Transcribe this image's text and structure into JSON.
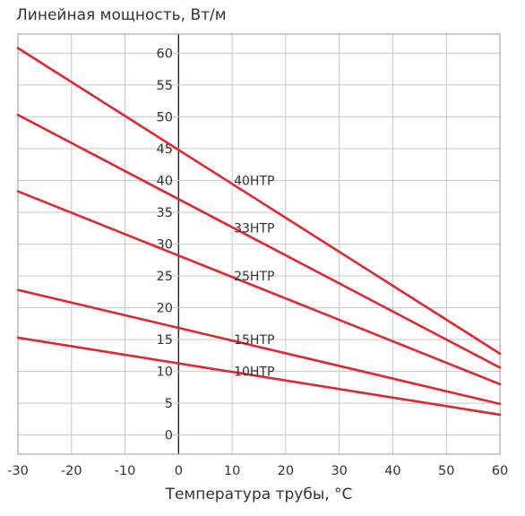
{
  "chart_data": {
    "type": "line",
    "ylabel": "Линейная мощность, Вт/м",
    "xlabel": "Температура трубы, °C",
    "xlim": [
      -30,
      60
    ],
    "ylim": [
      -3,
      63
    ],
    "x_ticks": [
      -30,
      -20,
      -10,
      0,
      10,
      20,
      30,
      40,
      50,
      60
    ],
    "x_tick_labels": [
      "-30",
      "-20",
      "-10",
      "0",
      "10",
      "20",
      "30",
      "40",
      "50",
      "60"
    ],
    "y_ticks": [
      0,
      5,
      10,
      15,
      20,
      25,
      30,
      35,
      40,
      45,
      50,
      55,
      60
    ],
    "y_tick_labels": [
      "0",
      "5",
      "10",
      "15",
      "20",
      "25",
      "30",
      "35",
      "40",
      "45",
      "50",
      "55",
      "60"
    ],
    "grid": true,
    "line_color": "#e0262e",
    "series": [
      {
        "name": "40HTP",
        "label_at": [
          10,
          40
        ],
        "points": [
          [
            -30,
            60.8
          ],
          [
            60,
            12.8
          ]
        ]
      },
      {
        "name": "33HTP",
        "label_at": [
          10,
          32.5
        ],
        "points": [
          [
            -30,
            50.3
          ],
          [
            60,
            10.6
          ]
        ]
      },
      {
        "name": "25HTP",
        "label_at": [
          10,
          25
        ],
        "points": [
          [
            -30,
            38.3
          ],
          [
            60,
            8.0
          ]
        ]
      },
      {
        "name": "15HTP",
        "label_at": [
          10,
          15
        ],
        "points": [
          [
            -30,
            22.8
          ],
          [
            60,
            4.9
          ]
        ]
      },
      {
        "name": "10HTP",
        "label_at": [
          10,
          10
        ],
        "points": [
          [
            -30,
            15.3
          ],
          [
            60,
            3.2
          ]
        ]
      }
    ]
  }
}
